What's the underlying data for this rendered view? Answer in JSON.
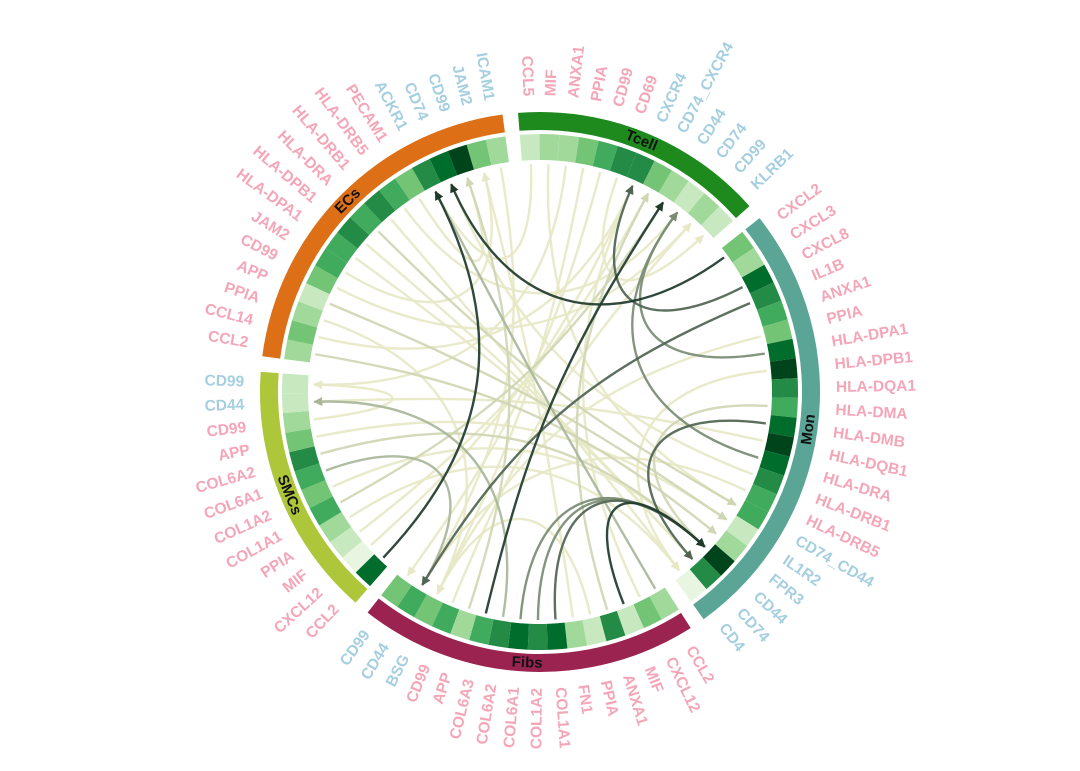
{
  "diagram": {
    "type": "chord",
    "colors": {
      "ligand_label": "#f4a6b8",
      "receptor_label": "#a5cfe0",
      "heat_scale": [
        "#e7f5e1",
        "#c8e9c0",
        "#a1d99b",
        "#74c476",
        "#41ab5d",
        "#238b45",
        "#006d2c",
        "#00441b"
      ],
      "link_scale": [
        "#f7f5d8",
        "#e6e8c6",
        "#cfd6b3",
        "#a9b69a",
        "#7a8c74",
        "#4f6453",
        "#1f3a2b"
      ]
    },
    "sectors": [
      {
        "id": "tcell",
        "name": "Tcell",
        "color": "#1e8a1e",
        "genes": [
          {
            "label": "CCL5",
            "role": "ligand",
            "level": 1
          },
          {
            "label": "MIF",
            "role": "ligand",
            "level": 2
          },
          {
            "label": "ANXA1",
            "role": "ligand",
            "level": 2
          },
          {
            "label": "PPIA",
            "role": "ligand",
            "level": 3
          },
          {
            "label": "CD99",
            "role": "ligand",
            "level": 4
          },
          {
            "label": "CD69",
            "role": "ligand",
            "level": 5
          },
          {
            "label": "CXCR4",
            "role": "receptor",
            "level": 5
          },
          {
            "label": "CD74_CXCR4",
            "role": "receptor",
            "level": 3
          },
          {
            "label": "CD44",
            "role": "receptor",
            "level": 2
          },
          {
            "label": "CD74",
            "role": "receptor",
            "level": 1
          },
          {
            "label": "CD99",
            "role": "receptor",
            "level": 2
          },
          {
            "label": "KLRB1",
            "role": "receptor",
            "level": 1
          }
        ]
      },
      {
        "id": "mon",
        "name": "Mon",
        "color": "#5aa596",
        "genes": [
          {
            "label": "CXCL2",
            "role": "ligand",
            "level": 3
          },
          {
            "label": "CXCL3",
            "role": "ligand",
            "level": 2
          },
          {
            "label": "CXCL8",
            "role": "ligand",
            "level": 6
          },
          {
            "label": "IL1B",
            "role": "ligand",
            "level": 5
          },
          {
            "label": "ANXA1",
            "role": "ligand",
            "level": 4
          },
          {
            "label": "PPIA",
            "role": "ligand",
            "level": 3
          },
          {
            "label": "HLA-DPA1",
            "role": "ligand",
            "level": 6
          },
          {
            "label": "HLA-DPB1",
            "role": "ligand",
            "level": 7
          },
          {
            "label": "HLA-DQA1",
            "role": "ligand",
            "level": 5
          },
          {
            "label": "HLA-DMA",
            "role": "ligand",
            "level": 4
          },
          {
            "label": "HLA-DMB",
            "role": "ligand",
            "level": 6
          },
          {
            "label": "HLA-DQB1",
            "role": "ligand",
            "level": 7
          },
          {
            "label": "HLA-DRA",
            "role": "ligand",
            "level": 6
          },
          {
            "label": "HLA-DRB1",
            "role": "ligand",
            "level": 5
          },
          {
            "label": "HLA-DRB5",
            "role": "ligand",
            "level": 4
          },
          {
            "label": "CD74_CD44",
            "role": "receptor",
            "level": 4
          },
          {
            "label": "IL1R2",
            "role": "receptor",
            "level": 1
          },
          {
            "label": "FPR3",
            "role": "receptor",
            "level": 2
          },
          {
            "label": "CD44",
            "role": "receptor",
            "level": 7
          },
          {
            "label": "CD74",
            "role": "receptor",
            "level": 5
          },
          {
            "label": "CD4",
            "role": "receptor",
            "level": 0
          }
        ]
      },
      {
        "id": "fibs",
        "name": "Fibs",
        "color": "#9b2350",
        "genes": [
          {
            "label": "CCL2",
            "role": "ligand",
            "level": 2
          },
          {
            "label": "CXCL12",
            "role": "ligand",
            "level": 3
          },
          {
            "label": "MIF",
            "role": "ligand",
            "level": 1
          },
          {
            "label": "ANXA1",
            "role": "ligand",
            "level": 5
          },
          {
            "label": "PPIA",
            "role": "ligand",
            "level": 1
          },
          {
            "label": "FN1",
            "role": "ligand",
            "level": 2
          },
          {
            "label": "COL1A1",
            "role": "ligand",
            "level": 6
          },
          {
            "label": "COL1A2",
            "role": "ligand",
            "level": 5
          },
          {
            "label": "COL6A1",
            "role": "ligand",
            "level": 6
          },
          {
            "label": "COL6A2",
            "role": "ligand",
            "level": 5
          },
          {
            "label": "COL6A3",
            "role": "ligand",
            "level": 4
          },
          {
            "label": "APP",
            "role": "ligand",
            "level": 2
          },
          {
            "label": "CD99",
            "role": "ligand",
            "level": 4
          },
          {
            "label": "BSG",
            "role": "receptor",
            "level": 3
          },
          {
            "label": "CD44",
            "role": "receptor",
            "level": 4
          },
          {
            "label": "CD99",
            "role": "receptor",
            "level": 3
          }
        ]
      },
      {
        "id": "smcs",
        "name": "SMCs",
        "color": "#aec63a",
        "genes": [
          {
            "label": "CCL2",
            "role": "ligand",
            "level": 6
          },
          {
            "label": "CXCL12",
            "role": "ligand",
            "level": 0
          },
          {
            "label": "MIF",
            "role": "ligand",
            "level": 1
          },
          {
            "label": "PPIA",
            "role": "ligand",
            "level": 2
          },
          {
            "label": "COL1A1",
            "role": "ligand",
            "level": 4
          },
          {
            "label": "COL1A2",
            "role": "ligand",
            "level": 3
          },
          {
            "label": "COL6A1",
            "role": "ligand",
            "level": 4
          },
          {
            "label": "COL6A2",
            "role": "ligand",
            "level": 5
          },
          {
            "label": "APP",
            "role": "ligand",
            "level": 3
          },
          {
            "label": "CD99",
            "role": "ligand",
            "level": 2
          },
          {
            "label": "CD44",
            "role": "receptor",
            "level": 1
          },
          {
            "label": "CD99",
            "role": "receptor",
            "level": 1
          }
        ]
      },
      {
        "id": "ecs",
        "name": "ECs",
        "color": "#dd6f16",
        "genes": [
          {
            "label": "CCL2",
            "role": "ligand",
            "level": 2
          },
          {
            "label": "CCL14",
            "role": "ligand",
            "level": 3
          },
          {
            "label": "PPIA",
            "role": "ligand",
            "level": 2
          },
          {
            "label": "APP",
            "role": "ligand",
            "level": 1
          },
          {
            "label": "CD99",
            "role": "ligand",
            "level": 3
          },
          {
            "label": "JAM2",
            "role": "ligand",
            "level": 4
          },
          {
            "label": "HLA-DPA1",
            "role": "ligand",
            "level": 4
          },
          {
            "label": "HLA-DPB1",
            "role": "ligand",
            "level": 5
          },
          {
            "label": "HLA-DRA",
            "role": "ligand",
            "level": 4
          },
          {
            "label": "HLA-DRB1",
            "role": "ligand",
            "level": 5
          },
          {
            "label": "HLA-DRB5",
            "role": "ligand",
            "level": 4
          },
          {
            "label": "PECAM1",
            "role": "ligand",
            "level": 3
          },
          {
            "label": "ACKR1",
            "role": "receptor",
            "level": 5
          },
          {
            "label": "CD74",
            "role": "receptor",
            "level": 6
          },
          {
            "label": "CD99",
            "role": "receptor",
            "level": 7
          },
          {
            "label": "JAM2",
            "role": "receptor",
            "level": 3
          },
          {
            "label": "ICAM1",
            "role": "receptor",
            "level": 2
          }
        ]
      }
    ],
    "links": [
      {
        "from": "mon:0",
        "to": "ecs:13",
        "w": 6
      },
      {
        "from": "mon:2",
        "to": "tcell:6",
        "w": 5
      },
      {
        "from": "mon:3",
        "to": "fibs:14",
        "w": 5
      },
      {
        "from": "mon:6",
        "to": "tcell:9",
        "w": 4
      },
      {
        "from": "mon:9",
        "to": "mon:18",
        "w": 2
      },
      {
        "from": "mon:11",
        "to": "smcs:10",
        "w": 1
      },
      {
        "from": "mon:12",
        "to": "tcell:9",
        "w": 4
      },
      {
        "from": "mon:13",
        "to": "ecs:13",
        "w": 1
      },
      {
        "from": "mon:14",
        "to": "fibs:14",
        "w": 1
      },
      {
        "from": "mon:7",
        "to": "mon:20",
        "w": 1
      },
      {
        "from": "mon:10",
        "to": "mon:19",
        "w": 5
      },
      {
        "from": "mon:5",
        "to": "fibs:13",
        "w": 1
      },
      {
        "from": "fibs:0",
        "to": "ecs:12",
        "w": 3
      },
      {
        "from": "fibs:1",
        "to": "tcell:6",
        "w": 1
      },
      {
        "from": "fibs:3",
        "to": "tcell:7",
        "w": 2
      },
      {
        "from": "fibs:4",
        "to": "fibs:13",
        "w": 1
      },
      {
        "from": "fibs:6",
        "to": "mon:18",
        "w": 5
      },
      {
        "from": "fibs:7",
        "to": "mon:18",
        "w": 4
      },
      {
        "from": "fibs:8",
        "to": "mon:18",
        "w": 4
      },
      {
        "from": "fibs:9",
        "to": "smcs:10",
        "w": 3
      },
      {
        "from": "fibs:10",
        "to": "tcell:8",
        "w": 6
      },
      {
        "from": "fibs:11",
        "to": "ecs:14",
        "w": 2
      },
      {
        "from": "fibs:12",
        "to": "tcell:10",
        "w": 1
      },
      {
        "from": "fibs:2",
        "to": "mon:18",
        "w": 6
      },
      {
        "from": "fibs:5",
        "to": "ecs:15",
        "w": 1
      },
      {
        "from": "smcs:0",
        "to": "ecs:12",
        "w": 6
      },
      {
        "from": "smcs:1",
        "to": "tcell:6",
        "w": 1
      },
      {
        "from": "smcs:2",
        "to": "tcell:7",
        "w": 1
      },
      {
        "from": "smcs:3",
        "to": "mon:20",
        "w": 1
      },
      {
        "from": "smcs:4",
        "to": "tcell:8",
        "w": 2
      },
      {
        "from": "smcs:5",
        "to": "mon:18",
        "w": 1
      },
      {
        "from": "smcs:6",
        "to": "fibs:14",
        "w": 3
      },
      {
        "from": "smcs:7",
        "to": "mon:18",
        "w": 2
      },
      {
        "from": "smcs:8",
        "to": "mon:16",
        "w": 1
      },
      {
        "from": "smcs:9",
        "to": "smcs:11",
        "w": 1
      },
      {
        "from": "ecs:0",
        "to": "mon:17",
        "w": 2
      },
      {
        "from": "ecs:1",
        "to": "tcell:6",
        "w": 1
      },
      {
        "from": "ecs:2",
        "to": "fibs:13",
        "w": 1
      },
      {
        "from": "ecs:3",
        "to": "mon:16",
        "w": 2
      },
      {
        "from": "ecs:4",
        "to": "tcell:10",
        "w": 1
      },
      {
        "from": "ecs:5",
        "to": "ecs:15",
        "w": 1
      },
      {
        "from": "ecs:6",
        "to": "mon:19",
        "w": 1
      },
      {
        "from": "ecs:7",
        "to": "mon:19",
        "w": 1
      },
      {
        "from": "ecs:8",
        "to": "mon:15",
        "w": 2
      },
      {
        "from": "ecs:9",
        "to": "mon:20",
        "w": 1
      },
      {
        "from": "ecs:10",
        "to": "tcell:9",
        "w": 1
      },
      {
        "from": "ecs:11",
        "to": "ecs:14",
        "w": 1
      },
      {
        "from": "tcell:0",
        "to": "ecs:12",
        "w": 1
      },
      {
        "from": "tcell:1",
        "to": "mon:15",
        "w": 1
      },
      {
        "from": "tcell:2",
        "to": "smcs:11",
        "w": 1
      },
      {
        "from": "tcell:3",
        "to": "fibs:13",
        "w": 1
      },
      {
        "from": "tcell:4",
        "to": "fibs:15",
        "w": 1
      },
      {
        "from": "tcell:5",
        "to": "tcell:11",
        "w": 1
      },
      {
        "from": "ecs:16",
        "to": "fibs:14",
        "w": 1
      }
    ]
  }
}
